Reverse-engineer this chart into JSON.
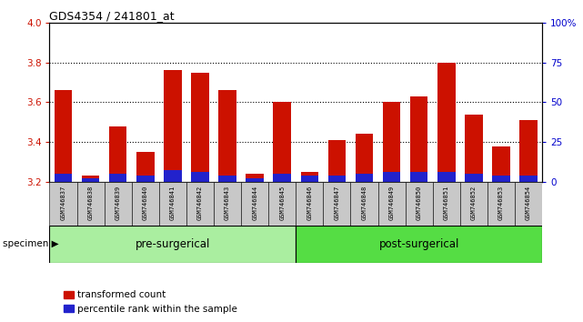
{
  "title": "GDS4354 / 241801_at",
  "samples": [
    "GSM746837",
    "GSM746838",
    "GSM746839",
    "GSM746840",
    "GSM746841",
    "GSM746842",
    "GSM746843",
    "GSM746844",
    "GSM746845",
    "GSM746846",
    "GSM746847",
    "GSM746848",
    "GSM746849",
    "GSM746850",
    "GSM746851",
    "GSM746852",
    "GSM746853",
    "GSM746854"
  ],
  "red_values": [
    3.66,
    3.23,
    3.48,
    3.35,
    3.76,
    3.75,
    3.66,
    3.24,
    3.6,
    3.25,
    3.41,
    3.44,
    3.6,
    3.63,
    3.8,
    3.54,
    3.38,
    3.51
  ],
  "blue_values": [
    0.04,
    0.02,
    0.04,
    0.03,
    0.06,
    0.05,
    0.03,
    0.02,
    0.04,
    0.03,
    0.03,
    0.04,
    0.05,
    0.05,
    0.05,
    0.04,
    0.03,
    0.03
  ],
  "ymin": 3.2,
  "ymax": 4.0,
  "yticks_left": [
    3.2,
    3.4,
    3.6,
    3.8,
    4.0
  ],
  "yticks_right": [
    0,
    25,
    50,
    75,
    100
  ],
  "bar_color": "#cc1100",
  "blue_color": "#2222cc",
  "axis_color": "#cc1100",
  "right_axis_color": "#0000cc",
  "pre_surgical_count": 9,
  "post_surgical_count": 9,
  "pre_surgical_label": "pre-surgerical",
  "post_surgical_label": "post-surgerical",
  "specimen_label": "specimen",
  "legend_red": "transformed count",
  "legend_blue": "percentile rank within the sample",
  "bar_width": 0.65,
  "label_bg": "#c8c8c8",
  "group_bg_pre": "#aaeea0",
  "group_bg_post": "#55dd44"
}
